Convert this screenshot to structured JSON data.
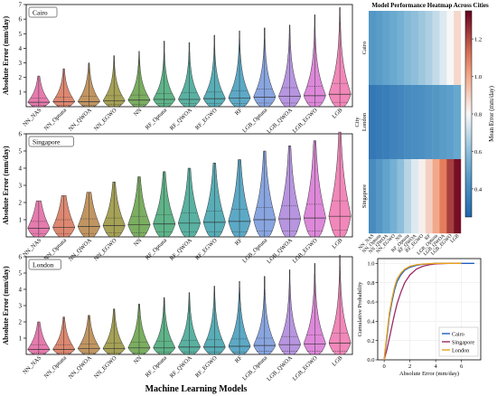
{
  "figure": {
    "xlabel": "Machine Learning Models",
    "ylabel": "Absolute Error (mm/day)"
  },
  "chart_data": [
    {
      "type": "violin",
      "panel": "Cairo",
      "categories": [
        "NN_NAS",
        "NN_Optuna",
        "NN_QWOA",
        "NN_EGWO",
        "NN",
        "RF_Optuna",
        "RF_QWOA",
        "RF_EGWO",
        "RF",
        "LGB_Optuna",
        "LGB_QWOA",
        "LGB_EGWO",
        "LGB"
      ],
      "max": [
        2.1,
        2.6,
        3.0,
        3.5,
        3.8,
        4.5,
        4.4,
        4.9,
        5.2,
        5.4,
        5.6,
        6.3,
        6.8
      ],
      "q1": [
        0.1,
        0.1,
        0.1,
        0.15,
        0.15,
        0.2,
        0.2,
        0.2,
        0.2,
        0.25,
        0.25,
        0.3,
        0.3
      ],
      "median": [
        0.3,
        0.35,
        0.35,
        0.4,
        0.45,
        0.5,
        0.5,
        0.55,
        0.6,
        0.65,
        0.7,
        0.75,
        0.85
      ],
      "q3": [
        0.6,
        0.65,
        0.7,
        0.75,
        0.8,
        0.9,
        0.95,
        1.0,
        1.1,
        1.2,
        1.3,
        1.4,
        1.6
      ],
      "ylim": [
        0,
        7
      ],
      "yticks": [
        1,
        2,
        3,
        4,
        5,
        6,
        7
      ]
    },
    {
      "type": "violin",
      "panel": "Singapore",
      "categories": [
        "NN_NAS",
        "NN_Optuna",
        "NN_QWOA",
        "NN_EGWO",
        "NN",
        "RF_Optuna",
        "RF_QWOA",
        "RF_EGWO",
        "RF",
        "LGB_Optuna",
        "LGB_QWOA",
        "LGB_EGWO",
        "LGB"
      ],
      "max": [
        2.1,
        2.4,
        2.6,
        3.2,
        3.5,
        3.8,
        4.0,
        4.3,
        4.5,
        5.0,
        5.3,
        5.6,
        6.1
      ],
      "q1": [
        0.2,
        0.2,
        0.2,
        0.25,
        0.25,
        0.3,
        0.3,
        0.3,
        0.3,
        0.35,
        0.35,
        0.35,
        0.4
      ],
      "median": [
        0.5,
        0.55,
        0.6,
        0.65,
        0.7,
        0.75,
        0.8,
        0.85,
        0.9,
        1.0,
        1.05,
        1.1,
        1.2
      ],
      "q3": [
        0.9,
        1.0,
        1.05,
        1.1,
        1.2,
        1.3,
        1.4,
        1.5,
        1.6,
        1.7,
        1.8,
        1.9,
        2.1
      ],
      "ylim": [
        0,
        6
      ],
      "yticks": [
        1,
        2,
        3,
        4,
        5,
        6
      ]
    },
    {
      "type": "violin",
      "panel": "London",
      "categories": [
        "NN_NAS",
        "NN_Optuna",
        "NN_QWOA",
        "NN_EGWO",
        "NN",
        "RF_Optuna",
        "RF_QWOA",
        "RF_EGWO",
        "RF",
        "LGB_Optuna",
        "LGB_QWOA",
        "LGB_EGWO",
        "LGB"
      ],
      "max": [
        2.0,
        2.3,
        2.4,
        2.8,
        3.1,
        3.5,
        3.8,
        4.2,
        4.5,
        4.8,
        5.2,
        5.6,
        6.1
      ],
      "q1": [
        0.1,
        0.1,
        0.1,
        0.1,
        0.1,
        0.15,
        0.15,
        0.15,
        0.15,
        0.2,
        0.2,
        0.2,
        0.2
      ],
      "median": [
        0.3,
        0.3,
        0.35,
        0.35,
        0.4,
        0.4,
        0.45,
        0.45,
        0.5,
        0.55,
        0.6,
        0.65,
        0.7
      ],
      "q3": [
        0.6,
        0.6,
        0.65,
        0.7,
        0.75,
        0.8,
        0.85,
        0.9,
        0.95,
        1.0,
        1.1,
        1.2,
        1.3
      ],
      "ylim": [
        0,
        6
      ],
      "yticks": [
        1,
        2,
        3,
        4,
        5,
        6
      ]
    },
    {
      "type": "heatmap",
      "title": "Model Performance Heatmap Across Cities",
      "rows": [
        "Cairo",
        "London",
        "Singapore"
      ],
      "ylabel": "City",
      "columns": [
        "NN_NAS",
        "NN_Optuna",
        "NN_QWOA",
        "NN_EGWO",
        "NN",
        "RF_Optuna",
        "RF_QWOA",
        "RF_EGWO",
        "RF",
        "LGB_Optuna",
        "LGB_QWOA",
        "LGB_EGWO",
        "LGB"
      ],
      "values": [
        [
          0.45,
          0.47,
          0.5,
          0.53,
          0.55,
          0.58,
          0.6,
          0.63,
          0.66,
          0.7,
          0.75,
          0.8,
          0.88
        ],
        [
          0.32,
          0.34,
          0.35,
          0.37,
          0.38,
          0.4,
          0.41,
          0.42,
          0.44,
          0.45,
          0.47,
          0.49,
          0.52
        ],
        [
          0.4,
          0.45,
          0.5,
          0.55,
          0.6,
          0.68,
          0.75,
          0.82,
          0.9,
          1.0,
          1.1,
          1.22,
          1.32
        ]
      ],
      "colorbar": {
        "label": "Mean Error (mm/day)",
        "range": [
          0.25,
          1.35
        ],
        "ticks": [
          0.4,
          0.6,
          0.8,
          1.0,
          1.2
        ],
        "colormap": "RdBu_r"
      }
    },
    {
      "type": "line",
      "title": "",
      "xlabel": "Absolute Error (mm/day)",
      "ylabel": "Cumulative Probability",
      "xlim": [
        -0.5,
        7.5
      ],
      "ylim": [
        0,
        1.05
      ],
      "xticks": [
        0,
        2,
        4,
        6
      ],
      "yticks": [
        0.0,
        0.2,
        0.4,
        0.6,
        0.8,
        1.0
      ],
      "grid": true,
      "legend": "lower-right",
      "series": [
        {
          "name": "Cairo",
          "color": "#1f5fbf",
          "x": [
            0,
            0.2,
            0.4,
            0.6,
            0.8,
            1.0,
            1.3,
            1.6,
            2.0,
            2.5,
            3.0,
            3.5,
            4.0,
            5.0,
            6.0,
            7.0
          ],
          "y": [
            0,
            0.22,
            0.45,
            0.6,
            0.72,
            0.81,
            0.88,
            0.93,
            0.96,
            0.98,
            0.99,
            0.995,
            1.0,
            1.0,
            1.0,
            1.0
          ]
        },
        {
          "name": "Singapore",
          "color": "#9c2a66",
          "x": [
            0,
            0.2,
            0.4,
            0.6,
            0.8,
            1.0,
            1.3,
            1.6,
            2.0,
            2.5,
            3.0,
            3.5,
            4.0,
            5.0,
            6.0
          ],
          "y": [
            0,
            0.1,
            0.22,
            0.35,
            0.47,
            0.58,
            0.7,
            0.8,
            0.88,
            0.94,
            0.97,
            0.985,
            0.995,
            1.0,
            1.0
          ]
        },
        {
          "name": "London",
          "color": "#e8a21a",
          "x": [
            0,
            0.2,
            0.4,
            0.6,
            0.8,
            1.0,
            1.3,
            1.6,
            2.0,
            2.5,
            3.0,
            3.5,
            4.0,
            5.0,
            6.0
          ],
          "y": [
            0,
            0.25,
            0.48,
            0.63,
            0.75,
            0.84,
            0.9,
            0.94,
            0.97,
            0.985,
            0.993,
            0.997,
            1.0,
            1.0,
            1.0
          ]
        }
      ]
    }
  ],
  "colors": {
    "violins": [
      "#e05a9a",
      "#d4694c",
      "#b27a3a",
      "#8f8a2c",
      "#5a9a3a",
      "#36a06a",
      "#2f9d8a",
      "#2e98a4",
      "#3393b8",
      "#6b8ed8",
      "#a57ad8",
      "#d46ad0",
      "#ee6aa8"
    ]
  }
}
